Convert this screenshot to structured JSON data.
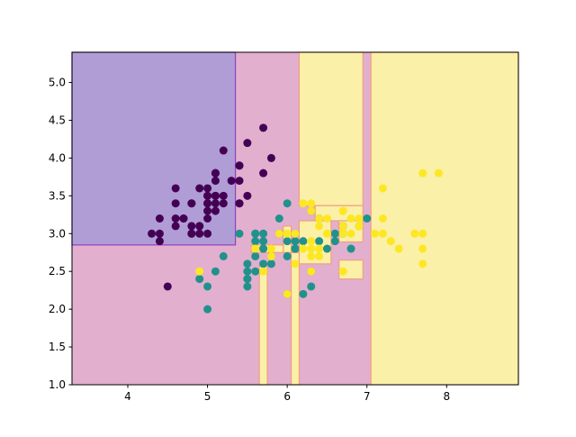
{
  "chart_data": {
    "type": "scatter",
    "title": "",
    "xlabel": "",
    "ylabel": "",
    "xlim": [
      3.3,
      8.9
    ],
    "ylim": [
      1.0,
      5.4
    ],
    "grid": false,
    "x_ticks": [
      4,
      5,
      6,
      7,
      8
    ],
    "y_ticks": [
      1.0,
      1.5,
      2.0,
      2.5,
      3.0,
      3.5,
      4.0,
      4.5,
      5.0
    ],
    "x_tick_labels": [
      "4",
      "5",
      "6",
      "7",
      "8"
    ],
    "y_tick_labels": [
      "1.0",
      "1.5",
      "2.0",
      "2.5",
      "3.0",
      "3.5",
      "4.0",
      "4.5",
      "5.0"
    ],
    "class_colors": [
      "#440154",
      "#21918c",
      "#fde725"
    ],
    "region_colors": [
      "#b09dd6",
      "#e2afcf",
      "#faf0a8"
    ],
    "region_edge_colors": [
      "#9040c0",
      "#e89a9a",
      "#f0a080"
    ],
    "background_class": 1,
    "regions": [
      {
        "class": 0,
        "x": [
          3.3,
          5.35
        ],
        "y": [
          2.85,
          5.4
        ]
      },
      {
        "class": 2,
        "x": [
          6.15,
          6.95
        ],
        "y": [
          3.37,
          5.4
        ]
      },
      {
        "class": 2,
        "x": [
          6.35,
          6.95
        ],
        "y": [
          3.17,
          3.37
        ]
      },
      {
        "class": 2,
        "x": [
          6.65,
          6.95
        ],
        "y": [
          2.89,
          3.17
        ]
      },
      {
        "class": 2,
        "x": [
          6.15,
          6.55
        ],
        "y": [
          2.6,
          3.17
        ]
      },
      {
        "class": 2,
        "x": [
          5.95,
          6.05
        ],
        "y": [
          2.75,
          3.1
        ]
      },
      {
        "class": 2,
        "x": [
          6.05,
          6.15
        ],
        "y": [
          1.0,
          2.75
        ]
      },
      {
        "class": 2,
        "x": [
          5.55,
          5.95
        ],
        "y": [
          2.75,
          2.85
        ]
      },
      {
        "class": 2,
        "x": [
          5.65,
          5.75
        ],
        "y": [
          1.0,
          2.57
        ]
      },
      {
        "class": 2,
        "x": [
          6.65,
          6.95
        ],
        "y": [
          2.4,
          2.65
        ]
      },
      {
        "class": 2,
        "x": [
          7.05,
          8.9
        ],
        "y": [
          1.0,
          5.4
        ]
      }
    ],
    "series": [
      {
        "class": 0,
        "points": [
          [
            5.1,
            3.5
          ],
          [
            4.9,
            3.0
          ],
          [
            4.7,
            3.2
          ],
          [
            4.6,
            3.1
          ],
          [
            5.0,
            3.6
          ],
          [
            5.4,
            3.9
          ],
          [
            4.6,
            3.4
          ],
          [
            5.0,
            3.4
          ],
          [
            4.4,
            2.9
          ],
          [
            4.9,
            3.1
          ],
          [
            5.4,
            3.7
          ],
          [
            4.8,
            3.4
          ],
          [
            4.8,
            3.0
          ],
          [
            4.3,
            3.0
          ],
          [
            5.8,
            4.0
          ],
          [
            5.7,
            4.4
          ],
          [
            5.4,
            3.9
          ],
          [
            5.1,
            3.5
          ],
          [
            5.7,
            3.8
          ],
          [
            5.1,
            3.8
          ],
          [
            5.4,
            3.4
          ],
          [
            5.1,
            3.7
          ],
          [
            4.6,
            3.6
          ],
          [
            5.1,
            3.3
          ],
          [
            4.8,
            3.4
          ],
          [
            5.0,
            3.0
          ],
          [
            5.0,
            3.4
          ],
          [
            5.2,
            3.5
          ],
          [
            5.2,
            3.4
          ],
          [
            4.7,
            3.2
          ],
          [
            4.8,
            3.1
          ],
          [
            5.4,
            3.4
          ],
          [
            5.2,
            4.1
          ],
          [
            5.5,
            4.2
          ],
          [
            4.9,
            3.1
          ],
          [
            5.0,
            3.2
          ],
          [
            5.5,
            3.5
          ],
          [
            4.9,
            3.6
          ],
          [
            4.4,
            3.0
          ],
          [
            5.1,
            3.4
          ],
          [
            5.0,
            3.5
          ],
          [
            4.5,
            2.3
          ],
          [
            4.4,
            3.2
          ],
          [
            5.0,
            3.5
          ],
          [
            5.1,
            3.8
          ],
          [
            4.8,
            3.0
          ],
          [
            5.1,
            3.8
          ],
          [
            4.6,
            3.2
          ],
          [
            5.3,
            3.7
          ],
          [
            5.0,
            3.3
          ]
        ]
      },
      {
        "class": 1,
        "points": [
          [
            7.0,
            3.2
          ],
          [
            6.4,
            3.2
          ],
          [
            6.9,
            3.1
          ],
          [
            5.5,
            2.3
          ],
          [
            6.5,
            2.8
          ],
          [
            5.7,
            2.8
          ],
          [
            6.3,
            3.3
          ],
          [
            4.9,
            2.4
          ],
          [
            6.6,
            2.9
          ],
          [
            5.2,
            2.7
          ],
          [
            5.0,
            2.0
          ],
          [
            5.9,
            3.0
          ],
          [
            6.0,
            2.2
          ],
          [
            6.1,
            2.9
          ],
          [
            5.6,
            2.9
          ],
          [
            6.7,
            3.1
          ],
          [
            5.6,
            3.0
          ],
          [
            5.8,
            2.7
          ],
          [
            6.2,
            2.2
          ],
          [
            5.6,
            2.5
          ],
          [
            5.9,
            3.2
          ],
          [
            6.1,
            2.8
          ],
          [
            6.3,
            2.5
          ],
          [
            6.1,
            2.8
          ],
          [
            6.4,
            2.9
          ],
          [
            6.6,
            3.0
          ],
          [
            6.8,
            2.8
          ],
          [
            6.7,
            3.0
          ],
          [
            6.0,
            2.9
          ],
          [
            5.7,
            2.6
          ],
          [
            5.5,
            2.4
          ],
          [
            5.5,
            2.4
          ],
          [
            5.8,
            2.7
          ],
          [
            6.0,
            2.7
          ],
          [
            5.4,
            3.0
          ],
          [
            6.0,
            3.4
          ],
          [
            6.7,
            3.1
          ],
          [
            6.3,
            2.3
          ],
          [
            5.6,
            3.0
          ],
          [
            5.5,
            2.5
          ],
          [
            5.5,
            2.6
          ],
          [
            6.1,
            3.0
          ],
          [
            5.8,
            2.6
          ],
          [
            5.0,
            2.3
          ],
          [
            5.6,
            2.7
          ],
          [
            5.7,
            3.0
          ],
          [
            5.7,
            2.9
          ],
          [
            6.2,
            2.9
          ],
          [
            5.1,
            2.5
          ],
          [
            5.7,
            2.8
          ]
        ]
      },
      {
        "class": 2,
        "points": [
          [
            6.3,
            3.3
          ],
          [
            5.8,
            2.7
          ],
          [
            7.1,
            3.0
          ],
          [
            6.3,
            2.9
          ],
          [
            6.5,
            3.0
          ],
          [
            7.6,
            3.0
          ],
          [
            4.9,
            2.5
          ],
          [
            7.3,
            2.9
          ],
          [
            6.7,
            2.5
          ],
          [
            7.2,
            3.6
          ],
          [
            6.5,
            3.2
          ],
          [
            6.4,
            2.7
          ],
          [
            6.8,
            3.0
          ],
          [
            5.7,
            2.5
          ],
          [
            5.8,
            2.8
          ],
          [
            6.4,
            3.2
          ],
          [
            6.5,
            3.0
          ],
          [
            7.7,
            3.8
          ],
          [
            7.7,
            2.6
          ],
          [
            6.0,
            2.2
          ],
          [
            6.9,
            3.2
          ],
          [
            5.6,
            2.8
          ],
          [
            7.7,
            2.8
          ],
          [
            6.3,
            2.7
          ],
          [
            6.7,
            3.3
          ],
          [
            7.2,
            3.2
          ],
          [
            6.2,
            2.8
          ],
          [
            6.1,
            3.0
          ],
          [
            6.4,
            2.8
          ],
          [
            7.2,
            3.0
          ],
          [
            7.4,
            2.8
          ],
          [
            7.9,
            3.8
          ],
          [
            6.4,
            2.8
          ],
          [
            6.3,
            2.8
          ],
          [
            6.1,
            2.6
          ],
          [
            7.7,
            3.0
          ],
          [
            6.3,
            3.4
          ],
          [
            6.4,
            3.1
          ],
          [
            6.0,
            3.0
          ],
          [
            6.9,
            3.1
          ],
          [
            6.7,
            3.1
          ],
          [
            6.9,
            3.1
          ],
          [
            5.8,
            2.7
          ],
          [
            6.8,
            3.2
          ],
          [
            6.7,
            3.3
          ],
          [
            6.7,
            3.0
          ],
          [
            6.3,
            2.5
          ],
          [
            6.5,
            3.0
          ],
          [
            6.2,
            3.4
          ],
          [
            5.9,
            3.0
          ]
        ]
      }
    ]
  }
}
